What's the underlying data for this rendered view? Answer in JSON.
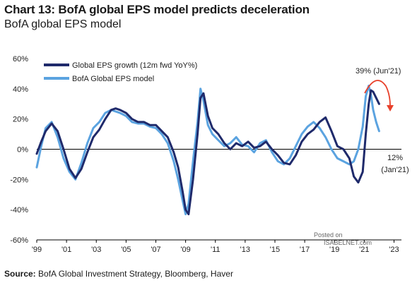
{
  "header": {
    "title": "Chart 13: BofA global EPS model predicts deceleration",
    "subtitle": "BofA global EPS model"
  },
  "footer": {
    "source_label": "Source:",
    "source_text": "BofA Global Investment Strategy, Bloomberg, Haver"
  },
  "watermark": {
    "line1": "Posted on",
    "line2": "ISABELNET.com"
  },
  "chart_data": {
    "type": "line",
    "title": "",
    "xlabel": "",
    "ylabel": "",
    "xlim": [
      1999.0,
      2023.5
    ],
    "ylim": [
      -60,
      60
    ],
    "grid": false,
    "legend": "top-left",
    "y_ticks": [
      60,
      40,
      20,
      0,
      -20,
      -40,
      -60
    ],
    "y_tick_labels": [
      "60%",
      "40%",
      "20%",
      "0%",
      "-20%",
      "-40%",
      "-60%"
    ],
    "x_ticks": [
      1999,
      2001,
      2003,
      2005,
      2007,
      2009,
      2011,
      2013,
      2015,
      2017,
      2019,
      2021,
      2023
    ],
    "x_tick_labels": [
      "'99",
      "'01",
      "'03",
      "'05",
      "'07",
      "'09",
      "'11",
      "'13",
      "'15",
      "'17",
      "'19",
      "'21",
      "'23"
    ],
    "colors": {
      "growth": "#1f2a6b",
      "model": "#5ba3e0",
      "arrow": "#e8402a",
      "axis": "#000000"
    },
    "series": [
      {
        "name": "Global EPS growth (12m fwd YoY%)",
        "color": "#1f2a6b",
        "x": [
          1999.0,
          1999.3,
          1999.6,
          2000.0,
          2000.4,
          2000.8,
          2001.2,
          2001.6,
          2002.0,
          2002.4,
          2002.8,
          2003.2,
          2003.6,
          2004.0,
          2004.3,
          2004.6,
          2005.0,
          2005.4,
          2005.8,
          2006.2,
          2006.6,
          2007.0,
          2007.4,
          2007.8,
          2008.2,
          2008.5,
          2008.8,
          2009.0,
          2009.2,
          2009.5,
          2009.8,
          2010.0,
          2010.2,
          2010.5,
          2010.8,
          2011.2,
          2011.6,
          2012.0,
          2012.4,
          2012.8,
          2013.2,
          2013.6,
          2014.0,
          2014.4,
          2014.8,
          2015.2,
          2015.6,
          2016.0,
          2016.4,
          2016.8,
          2017.2,
          2017.6,
          2018.0,
          2018.4,
          2018.8,
          2019.2,
          2019.6,
          2020.0,
          2020.3,
          2020.6,
          2020.9,
          2021.1,
          2021.3,
          2021.45,
          2021.6,
          2021.8,
          2022.0
        ],
        "values": [
          -3,
          5,
          12,
          17,
          12,
          0,
          -13,
          -19,
          -13,
          -2,
          8,
          13,
          20,
          26,
          27,
          26,
          24,
          20,
          18,
          18,
          16,
          16,
          12,
          8,
          -2,
          -12,
          -28,
          -40,
          -43,
          -20,
          10,
          34,
          37,
          22,
          14,
          10,
          4,
          0,
          4,
          2,
          5,
          1,
          2,
          5,
          0,
          -4,
          -9,
          -10,
          -4,
          5,
          10,
          13,
          18,
          21,
          12,
          2,
          0,
          -6,
          -18,
          -22,
          -15,
          10,
          30,
          39,
          38,
          34,
          30
        ]
      },
      {
        "name": "BofA Global EPS model",
        "color": "#5ba3e0",
        "x": [
          1999.0,
          1999.3,
          1999.6,
          2000.0,
          2000.4,
          2000.8,
          2001.2,
          2001.6,
          2002.0,
          2002.4,
          2002.8,
          2003.2,
          2003.6,
          2004.0,
          2004.3,
          2004.6,
          2005.0,
          2005.4,
          2005.8,
          2006.2,
          2006.6,
          2007.0,
          2007.4,
          2007.8,
          2008.2,
          2008.5,
          2008.8,
          2009.0,
          2009.2,
          2009.5,
          2009.8,
          2010.0,
          2010.2,
          2010.5,
          2010.8,
          2011.2,
          2011.6,
          2012.0,
          2012.4,
          2012.8,
          2013.2,
          2013.6,
          2014.0,
          2014.4,
          2014.8,
          2015.2,
          2015.6,
          2016.0,
          2016.4,
          2016.8,
          2017.2,
          2017.6,
          2018.0,
          2018.4,
          2018.8,
          2019.2,
          2019.6,
          2020.0,
          2020.3,
          2020.6,
          2020.9,
          2021.1,
          2021.3,
          2021.45,
          2021.6,
          2021.8,
          2022.0
        ],
        "values": [
          -12,
          2,
          14,
          18,
          8,
          -6,
          -15,
          -20,
          -9,
          4,
          14,
          18,
          24,
          26,
          25,
          24,
          22,
          18,
          17,
          17,
          15,
          14,
          10,
          4,
          -8,
          -20,
          -34,
          -43,
          -36,
          -8,
          18,
          40,
          32,
          16,
          10,
          6,
          2,
          4,
          8,
          3,
          2,
          -2,
          4,
          6,
          -2,
          -8,
          -10,
          -6,
          2,
          10,
          15,
          18,
          14,
          8,
          0,
          -6,
          -8,
          -10,
          -8,
          0,
          15,
          35,
          42,
          36,
          26,
          18,
          12
        ]
      }
    ],
    "annotations": [
      {
        "text": "39% (Jun'21)",
        "x": 2021.45,
        "y": 39
      },
      {
        "text": "12%",
        "x": 2022.0,
        "y": 12
      },
      {
        "text": "(Jan'21)",
        "x": 2022.0,
        "y": 12
      }
    ]
  }
}
